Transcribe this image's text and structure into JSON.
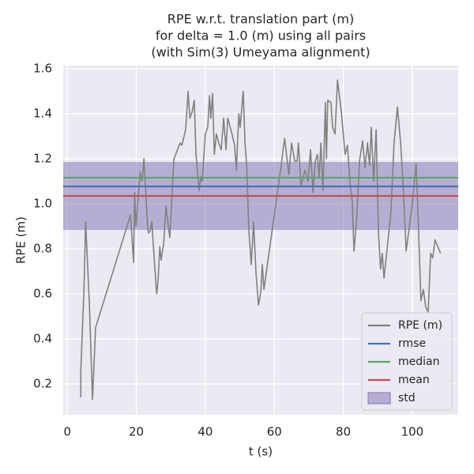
{
  "chart_data": {
    "type": "line",
    "title": [
      "RPE w.r.t. translation part (m)",
      "for delta = 1.0 (m) using all pairs",
      "(with Sim(3) Umeyama alignment)"
    ],
    "x_label": "t (s)",
    "y_label": "RPE (m)",
    "x": [
      3.9,
      3.9,
      4.8,
      5.3,
      6.4,
      7.3,
      8.2,
      18.3,
      19.2,
      19.5,
      19.9,
      21.1,
      21.7,
      22.2,
      22.7,
      23.3,
      23.5,
      24.0,
      24.5,
      25.2,
      25.9,
      26.3,
      26.8,
      27.2,
      27.9,
      28.6,
      29.7,
      30.9,
      32.7,
      33.2,
      34.3,
      35.0,
      35.5,
      36.2,
      36.8,
      37.3,
      38.2,
      38.7,
      39.1,
      39.6,
      40.0,
      40.7,
      41.2,
      41.6,
      42.1,
      42.6,
      43.2,
      43.9,
      44.6,
      45.3,
      46.0,
      46.5,
      47.4,
      48.5,
      49.0,
      49.7,
      50.1,
      51.0,
      51.5,
      52.0,
      52.6,
      53.3,
      54.0,
      54.7,
      55.4,
      56.1,
      56.5,
      57.0,
      61.8,
      63.0,
      64.2,
      65.0,
      65.9,
      66.6,
      67.0,
      67.7,
      68.9,
      69.8,
      70.5,
      71.2,
      71.9,
      72.5,
      73.0,
      73.5,
      74.1,
      74.8,
      75.1,
      75.5,
      76.4,
      76.9,
      77.6,
      78.3,
      79.4,
      80.5,
      81.2,
      81.9,
      82.6,
      83.1,
      83.8,
      84.7,
      85.6,
      86.3,
      87.0,
      87.6,
      88.1,
      88.8,
      89.5,
      90.2,
      90.8,
      91.3,
      91.8,
      93.8,
      94.7,
      95.7,
      96.6,
      97.3,
      98.2,
      100.0,
      101.1,
      101.8,
      102.5,
      103.2,
      103.9,
      104.6,
      105.3,
      105.9,
      106.6,
      108.2
    ],
    "series": [
      {
        "name": "RPE (m)",
        "color": "#808080",
        "values": [
          0.14,
          0.26,
          0.61,
          0.92,
          0.55,
          0.13,
          0.45,
          0.95,
          0.74,
          1.05,
          0.9,
          1.14,
          1.1,
          1.2,
          1.06,
          0.89,
          0.87,
          0.88,
          0.92,
          0.75,
          0.6,
          0.66,
          0.81,
          0.75,
          0.82,
          0.99,
          0.85,
          1.2,
          1.27,
          1.26,
          1.33,
          1.5,
          1.38,
          1.41,
          1.46,
          1.22,
          1.06,
          1.12,
          1.1,
          1.22,
          1.31,
          1.34,
          1.48,
          1.38,
          1.49,
          1.22,
          1.31,
          1.27,
          1.24,
          1.38,
          1.24,
          1.38,
          1.33,
          1.26,
          1.15,
          1.4,
          1.34,
          1.5,
          1.27,
          1.17,
          0.89,
          0.73,
          0.92,
          0.69,
          0.55,
          0.61,
          0.73,
          0.62,
          1.15,
          1.29,
          1.13,
          1.27,
          1.19,
          1.19,
          1.27,
          1.08,
          1.15,
          1.1,
          1.24,
          1.05,
          1.19,
          1.22,
          1.12,
          1.27,
          1.06,
          1.45,
          1.2,
          1.46,
          1.45,
          1.34,
          1.31,
          1.55,
          1.41,
          1.22,
          1.26,
          1.1,
          1.01,
          0.79,
          0.92,
          1.19,
          1.28,
          1.16,
          1.27,
          1.17,
          1.34,
          1.1,
          1.33,
          0.87,
          0.71,
          0.78,
          0.67,
          0.96,
          1.27,
          1.43,
          1.27,
          1.1,
          0.79,
          1.0,
          1.18,
          0.89,
          0.57,
          0.62,
          0.54,
          0.52,
          0.78,
          0.76,
          0.84,
          0.78
        ]
      }
    ],
    "stats": [
      {
        "name": "rmse",
        "color": "#4c72b0",
        "value": 1.077
      },
      {
        "name": "median",
        "color": "#55a868",
        "value": 1.116
      },
      {
        "name": "mean",
        "color": "#c44e52",
        "value": 1.035
      }
    ],
    "std": {
      "name": "std",
      "color": "#8172b2",
      "value": 0.151
    },
    "xlim": [
      -1.2,
      113.3
    ],
    "ylim": [
      0.063,
      1.614
    ],
    "xticks": [
      0,
      20,
      40,
      60,
      80,
      100
    ],
    "yticks": [
      0.2,
      0.4,
      0.6,
      0.8,
      {
        "value": 1,
        "label": "1.0"
      },
      1.2,
      1.4,
      1.6
    ],
    "grid": true,
    "legend": "lower right"
  }
}
